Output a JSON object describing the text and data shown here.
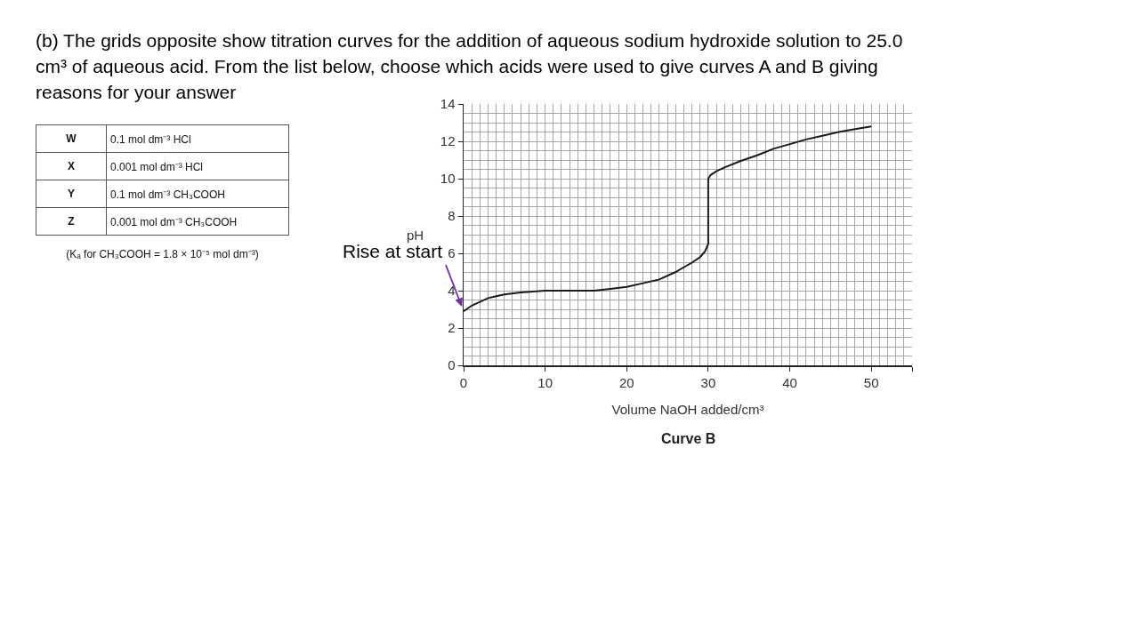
{
  "chart_data": [
    {
      "type": "other",
      "title": "(b) The grids opposite show titration curves for the addition of aqueous sodium hydroxide solution to 25.0 cm³ of aqueous acid. From the list below, choose which acids were used to give curves A and B giving reasons for your answer",
      "annotations": [
        "W",
        "0.1 mol dm⁻³ HCl",
        "X",
        "0.001 mol dm⁻³ HCl",
        "Y",
        "0.1 mol dm⁻³ CH₃COOH",
        "Z",
        "0.001 mol dm⁻³ CH₃COOH",
        "(Kₐ for CH₃COOH = 1.8 × 10⁻⁵ mol dm⁻³)"
      ]
    },
    {
      "type": "line",
      "xlabel": "Volume NaOH added/cm³",
      "ylabel": "pH",
      "annotations": [
        "Curve B",
        {
          "text": "Rise at start",
          "x": 0,
          "y": 2.9
        }
      ],
      "x": [
        0,
        1,
        2,
        3,
        4,
        5,
        7,
        10,
        13,
        16,
        18,
        20,
        22,
        24,
        26,
        28,
        29,
        29.6,
        30,
        30,
        30,
        30.3,
        31,
        32,
        34,
        36,
        38,
        40,
        42,
        44,
        46,
        48,
        50
      ],
      "series": [
        {
          "color": "#1a1a1a",
          "values": [
            2.9,
            3.2,
            3.4,
            3.6,
            3.7,
            3.8,
            3.9,
            4.0,
            4.0,
            4.0,
            4.1,
            4.2,
            4.4,
            4.6,
            5.0,
            5.5,
            5.8,
            6.1,
            6.5,
            8.0,
            10.0,
            10.2,
            10.4,
            10.6,
            10.95,
            11.25,
            11.6,
            11.85,
            12.1,
            12.3,
            12.5,
            12.65,
            12.8
          ]
        }
      ],
      "xlim": [
        0,
        55
      ],
      "xticks": [
        0,
        {
          "value": 1,
          "label": null
        },
        {
          "value": 2,
          "label": null
        },
        {
          "value": 3,
          "label": null
        },
        {
          "value": 4,
          "label": null
        },
        {
          "value": 5,
          "label": null
        },
        {
          "value": 6,
          "label": null
        },
        {
          "value": 7,
          "label": null
        },
        {
          "value": 8,
          "label": null
        },
        {
          "value": 9,
          "label": null
        },
        10,
        {
          "value": 11,
          "label": null
        },
        {
          "value": 12,
          "label": null
        },
        {
          "value": 13,
          "label": null
        },
        {
          "value": 14,
          "label": null
        },
        {
          "value": 15,
          "label": null
        },
        {
          "value": 16,
          "label": null
        },
        {
          "value": 17,
          "label": null
        },
        {
          "value": 18,
          "label": null
        },
        {
          "value": 19,
          "label": null
        },
        20,
        {
          "value": 21,
          "label": null
        },
        {
          "value": 22,
          "label": null
        },
        {
          "value": 23,
          "label": null
        },
        {
          "value": 24,
          "label": null
        },
        {
          "value": 25,
          "label": null
        },
        {
          "value": 26,
          "label": null
        },
        {
          "value": 27,
          "label": null
        },
        {
          "value": 28,
          "label": null
        },
        {
          "value": 29,
          "label": null
        },
        30,
        {
          "value": 31,
          "label": null
        },
        {
          "value": 32,
          "label": null
        },
        {
          "value": 33,
          "label": null
        },
        {
          "value": 34,
          "label": null
        },
        {
          "value": 35,
          "label": null
        },
        {
          "value": 36,
          "label": null
        },
        {
          "value": 37,
          "label": null
        },
        {
          "value": 38,
          "label": null
        },
        {
          "value": 39,
          "label": null
        },
        40,
        {
          "value": 41,
          "label": null
        },
        {
          "value": 42,
          "label": null
        },
        {
          "value": 43,
          "label": null
        },
        {
          "value": 44,
          "label": null
        },
        {
          "value": 45,
          "label": null
        },
        {
          "value": 46,
          "label": null
        },
        {
          "value": 47,
          "label": null
        },
        {
          "value": 48,
          "label": null
        },
        {
          "value": 49,
          "label": null
        },
        50,
        {
          "value": 51,
          "label": null
        },
        {
          "value": 52,
          "label": null
        },
        {
          "value": 53,
          "label": null
        },
        {
          "value": 54,
          "label": null
        },
        {
          "value": 55,
          "label": null
        }
      ],
      "ylim": [
        0,
        14
      ],
      "yticks": [
        0,
        {
          "value": 0.5,
          "label": null
        },
        {
          "value": 1,
          "label": null
        },
        {
          "value": 1.5,
          "label": null
        },
        2,
        {
          "value": 2.5,
          "label": null
        },
        {
          "value": 3,
          "label": null
        },
        {
          "value": 3.5,
          "label": null
        },
        4,
        {
          "value": 4.5,
          "label": null
        },
        {
          "value": 5,
          "label": null
        },
        {
          "value": 5.5,
          "label": null
        },
        6,
        {
          "value": 6.5,
          "label": null
        },
        {
          "value": 7,
          "label": null
        },
        {
          "value": 7.5,
          "label": null
        },
        8,
        {
          "value": 8.5,
          "label": null
        },
        {
          "value": 9,
          "label": null
        },
        {
          "value": 9.5,
          "label": null
        },
        10,
        {
          "value": 10.5,
          "label": null
        },
        {
          "value": 11,
          "label": null
        },
        {
          "value": 11.5,
          "label": null
        },
        12,
        {
          "value": 12.5,
          "label": null
        },
        {
          "value": 13,
          "label": null
        },
        {
          "value": 13.5,
          "label": null
        },
        14
      ],
      "grid": true
    }
  ]
}
